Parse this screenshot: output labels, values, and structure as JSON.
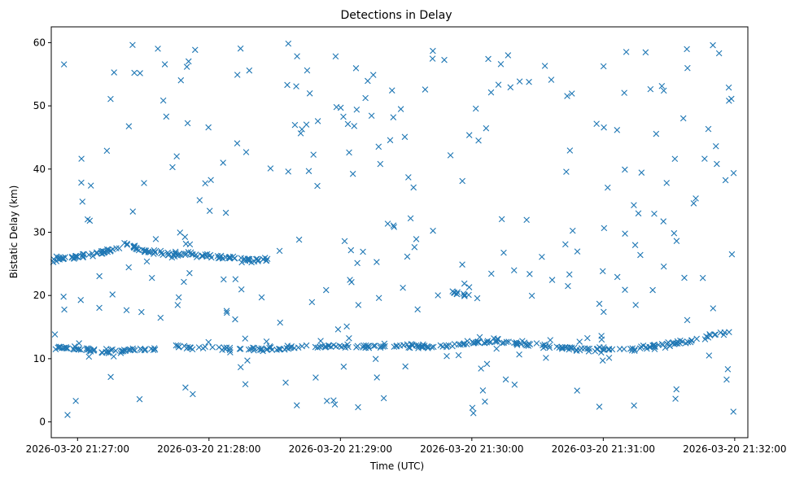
{
  "chart_data": {
    "type": "scatter",
    "title": "Detections in Delay",
    "xlabel": "Time (UTC)",
    "ylabel": "Bistatic Delay (km)",
    "xlim": [
      -0.2,
      5.1
    ],
    "ylim": [
      -2.5,
      62.5
    ],
    "x_unit": "minutes after 2026-03-20 21:27:00",
    "xticks": [
      {
        "value": 0,
        "label": "2026-03-20 21:27:00"
      },
      {
        "value": 1,
        "label": "2026-03-20 21:28:00"
      },
      {
        "value": 2,
        "label": "2026-03-20 21:29:00"
      },
      {
        "value": 3,
        "label": "2026-03-20 21:30:00"
      },
      {
        "value": 4,
        "label": "2026-03-20 21:31:00"
      },
      {
        "value": 5,
        "label": "2026-03-20 21:32:00"
      }
    ],
    "yticks": [
      0,
      10,
      20,
      30,
      40,
      50,
      60
    ],
    "marker": "x",
    "color": "#1f77b4",
    "seed": 20260320,
    "tracks": [
      {
        "name": "upper-track",
        "x_start": -0.25,
        "x_end": 1.45,
        "knots_x": [
          -0.25,
          0.1,
          0.25,
          0.4,
          0.55,
          0.8,
          1.1,
          1.45
        ],
        "knots_y": [
          25.5,
          26.5,
          27.2,
          28.0,
          26.8,
          26.5,
          26.0,
          25.5
        ],
        "count": 150,
        "spread": 0.4
      },
      {
        "name": "lower-track",
        "x_start": -0.25,
        "x_end": 5.0,
        "knots_x": [
          -0.25,
          0.3,
          0.7,
          1.1,
          1.4,
          1.9,
          2.5,
          2.8,
          3.2,
          3.5,
          3.9,
          4.2,
          4.6,
          5.0
        ],
        "knots_y": [
          12.0,
          11.0,
          12.0,
          11.5,
          11.5,
          12.0,
          12.0,
          12.0,
          13.0,
          12.0,
          11.5,
          11.5,
          12.5,
          14.5
        ],
        "count": 330,
        "spread": 0.35
      },
      {
        "name": "descending-track",
        "x_start": 2.85,
        "x_end": 3.05,
        "knots_x": [
          2.85,
          3.05
        ],
        "knots_y": [
          20.5,
          19.5
        ],
        "count": 12,
        "spread": 0.3
      }
    ],
    "clutter": {
      "count": 300,
      "x_range": [
        -0.25,
        5.0
      ],
      "y_range": [
        0.5,
        60
      ]
    }
  }
}
